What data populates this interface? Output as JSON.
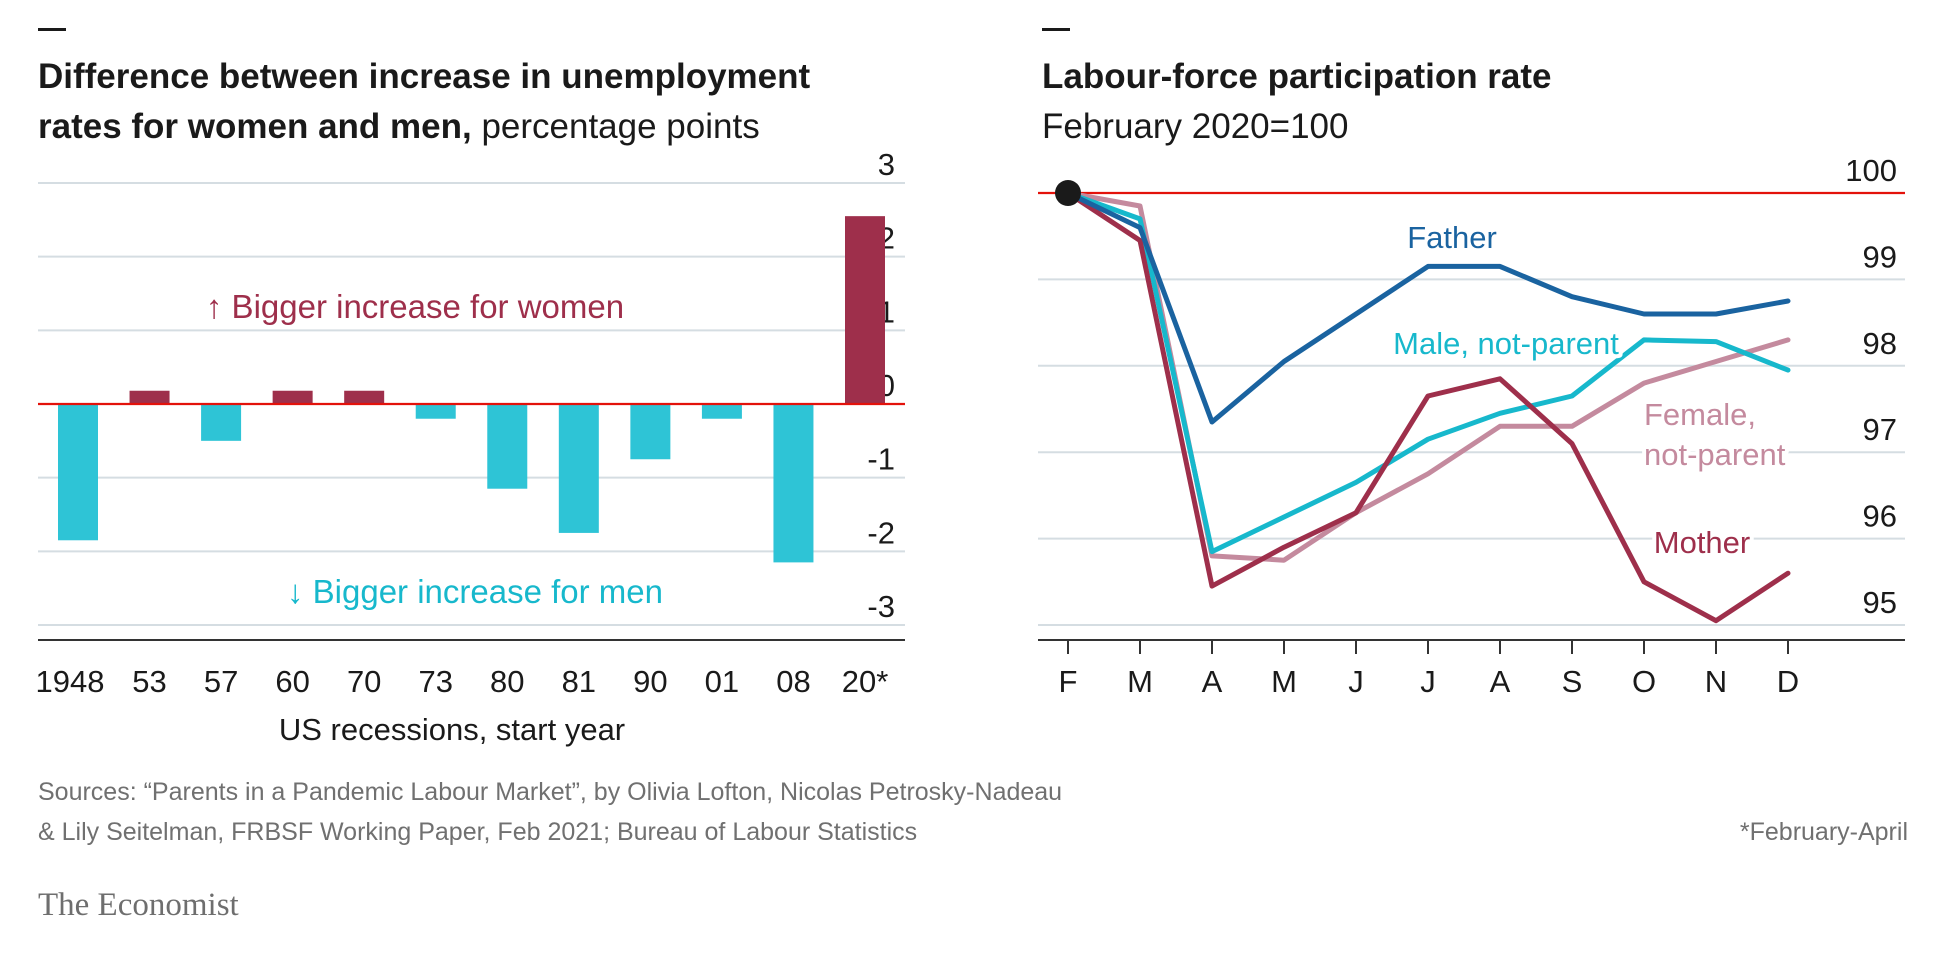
{
  "chart_data": [
    {
      "type": "bar",
      "title_bold_line1": "Difference between increase in unemployment",
      "title_bold_line2": "rates for women and men,",
      "title_regular": " percentage points",
      "categories": [
        "1948",
        "53",
        "57",
        "60",
        "70",
        "73",
        "80",
        "81",
        "90",
        "01",
        "08",
        "20*"
      ],
      "values": [
        -1.85,
        0.18,
        -0.5,
        0.18,
        0.18,
        -0.2,
        -1.15,
        -1.75,
        -0.75,
        -0.2,
        -2.15,
        2.55
      ],
      "ylim": [
        -3,
        3
      ],
      "yticks": [
        "3",
        "2",
        "1",
        "0",
        "-1",
        "-2",
        "-3"
      ],
      "xlabel": "US recessions, start year",
      "ylabel": "",
      "annotations": {
        "women": "↑ Bigger increase for women",
        "men": "↓ Bigger increase for men"
      },
      "colors": {
        "positive": "#9e2f4b",
        "negative": "#2ec4d6",
        "zero_line": "#e3120b"
      }
    },
    {
      "type": "line",
      "title_bold": "Labour-force participation rate",
      "subtitle": "February 2020=100",
      "categories": [
        "F",
        "M",
        "A",
        "M",
        "J",
        "J",
        "A",
        "S",
        "O",
        "N",
        "D"
      ],
      "ylim": [
        95,
        100
      ],
      "yticks": [
        "100",
        "99",
        "98",
        "97",
        "96",
        "95"
      ],
      "series": [
        {
          "name": "Female, not-parent",
          "label_line1": "Female,",
          "label_line2": "not-parent",
          "color": "#c48a9e",
          "values": [
            100,
            99.85,
            95.8,
            95.75,
            96.3,
            96.75,
            97.3,
            97.3,
            97.8,
            98.05,
            98.3
          ]
        },
        {
          "name": "Male, not-parent",
          "label": "Male, not-parent",
          "color": "#17b8cc",
          "values": [
            100,
            99.7,
            95.85,
            96.25,
            96.65,
            97.15,
            97.45,
            97.65,
            98.3,
            98.28,
            97.95
          ]
        },
        {
          "name": "Mother",
          "label": "Mother",
          "color": "#9e2f4b",
          "values": [
            100,
            99.45,
            95.45,
            95.9,
            96.3,
            97.65,
            97.85,
            97.1,
            95.5,
            95.05,
            95.6
          ]
        },
        {
          "name": "Father",
          "label": "Father",
          "color": "#1a63a0",
          "values": [
            100,
            99.6,
            97.35,
            98.05,
            98.6,
            99.15,
            99.15,
            98.8,
            98.6,
            98.6,
            98.75
          ]
        }
      ],
      "colors": {
        "baseline_100": "#e3120b",
        "start_dot": "#1a1a1a"
      }
    }
  ],
  "source_line1": "Sources: “Parents in a Pandemic Labour Market”, by Olivia Lofton, Nicolas Petrosky-Nadeau",
  "source_line2": "& Lily Seitelman, FRBSF Working Paper, Feb 2021; Bureau of Labour Statistics",
  "footnote": "*February-April",
  "logo": "The Economist"
}
